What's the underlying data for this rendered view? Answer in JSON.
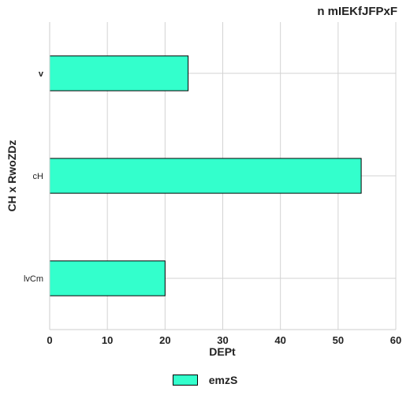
{
  "chart_data": {
    "type": "bar",
    "orientation": "horizontal",
    "title": "n mIEKfJFPxF",
    "xlabel": "DEPt",
    "ylabel": "CH x RwoZDz",
    "categories": [
      "v",
      "cH",
      "lvCm"
    ],
    "series": [
      {
        "name": "emzS",
        "values": [
          24,
          54,
          20
        ],
        "color": "#33ffcc"
      }
    ],
    "xlim": [
      0,
      60
    ],
    "xticks": [
      0,
      10,
      20,
      30,
      40,
      50,
      60
    ],
    "grid": true,
    "legend_position": "bottom-center"
  }
}
